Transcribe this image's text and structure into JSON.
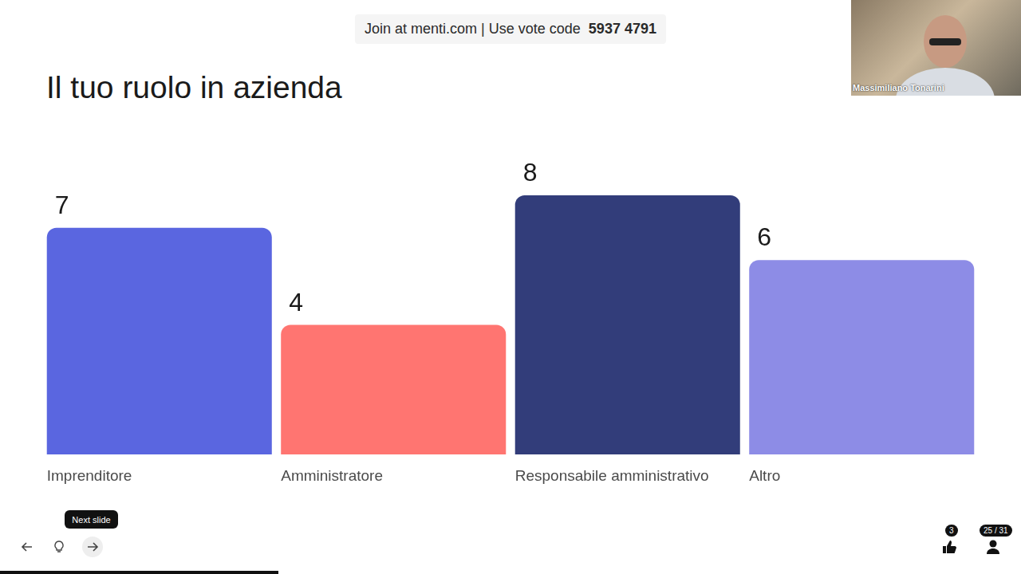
{
  "chart_data": {
    "type": "bar",
    "title": "Il tuo ruolo in azienda",
    "categories": [
      "Imprenditore",
      "Amministratore",
      "Responsabile amministrativo",
      "Altro"
    ],
    "values": [
      7,
      4,
      8,
      6
    ],
    "colors": [
      "#5a66e0",
      "#ff7571",
      "#323d7a",
      "#8d8ce6"
    ],
    "ylim": [
      0,
      8
    ],
    "grid": false,
    "data_labels": true,
    "tick_labels": "x"
  },
  "page": {
    "join_text": "Join at menti.com | Use vote code",
    "vote_code": "5937 4791",
    "presenter": "Massimiliano Tonarini",
    "tooltip": "Next slide",
    "reactions": 3,
    "slide_counter": "25 / 31"
  }
}
